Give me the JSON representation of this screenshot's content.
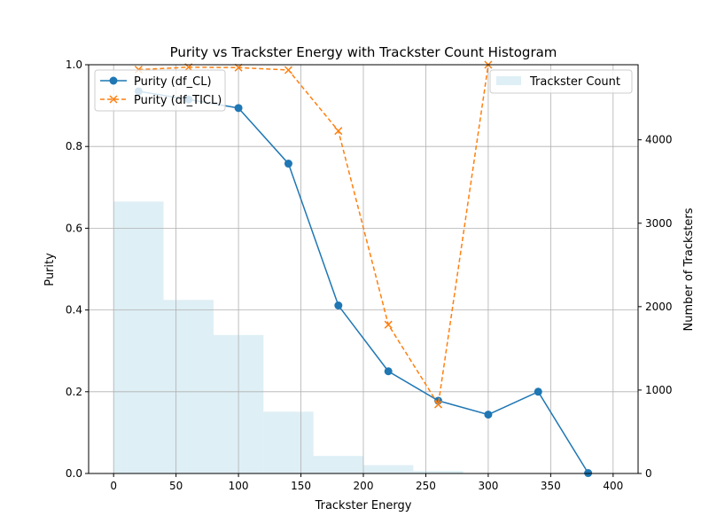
{
  "chart_data": {
    "type": "line",
    "title": "Purity vs Trackster Energy with Trackster Count Histogram",
    "xlabel": "Trackster Energy",
    "ylabel": "Purity",
    "y2label": "Number of Tracksters",
    "xlim": [
      -20,
      420
    ],
    "ylim": [
      0,
      1.0
    ],
    "y2lim": [
      0,
      4900
    ],
    "xticks": [
      0,
      50,
      100,
      150,
      200,
      250,
      300,
      350,
      400
    ],
    "yticks": [
      0.0,
      0.2,
      0.4,
      0.6,
      0.8,
      1.0
    ],
    "y2ticks": [
      0,
      1000,
      2000,
      3000,
      4000
    ],
    "xtick_labels": [
      "0",
      "50",
      "100",
      "150",
      "200",
      "250",
      "300",
      "350",
      "400"
    ],
    "ytick_labels": [
      "0.0",
      "0.2",
      "0.4",
      "0.6",
      "0.8",
      "1.0"
    ],
    "y2tick_labels": [
      "0",
      "1000",
      "2000",
      "3000",
      "4000"
    ],
    "grid": true,
    "series": [
      {
        "name": "Purity (df_CL)",
        "color": "#1f77b4",
        "marker": "circle",
        "linestyle": "solid",
        "x": [
          20,
          60,
          100,
          140,
          180,
          220,
          260,
          300,
          340,
          380
        ],
        "y": [
          0.935,
          0.915,
          0.894,
          0.758,
          0.411,
          0.25,
          0.178,
          0.144,
          0.2,
          0.001
        ]
      },
      {
        "name": "Purity (df_TICL)",
        "color": "#ff7f0e",
        "marker": "x",
        "linestyle": "dashed",
        "x": [
          20,
          60,
          100,
          140,
          180,
          220,
          260,
          300
        ],
        "y": [
          0.988,
          0.994,
          0.993,
          0.987,
          0.838,
          0.364,
          0.169,
          1.0
        ]
      }
    ],
    "histogram": {
      "name": "Trackster Count",
      "color": "#add8e6",
      "bin_edges": [
        0,
        40,
        80,
        120,
        160,
        200,
        240,
        280
      ],
      "counts": [
        3260,
        2080,
        1660,
        740,
        210,
        100,
        30
      ]
    },
    "legend_left": "top-left",
    "legend_right": "top-right"
  }
}
